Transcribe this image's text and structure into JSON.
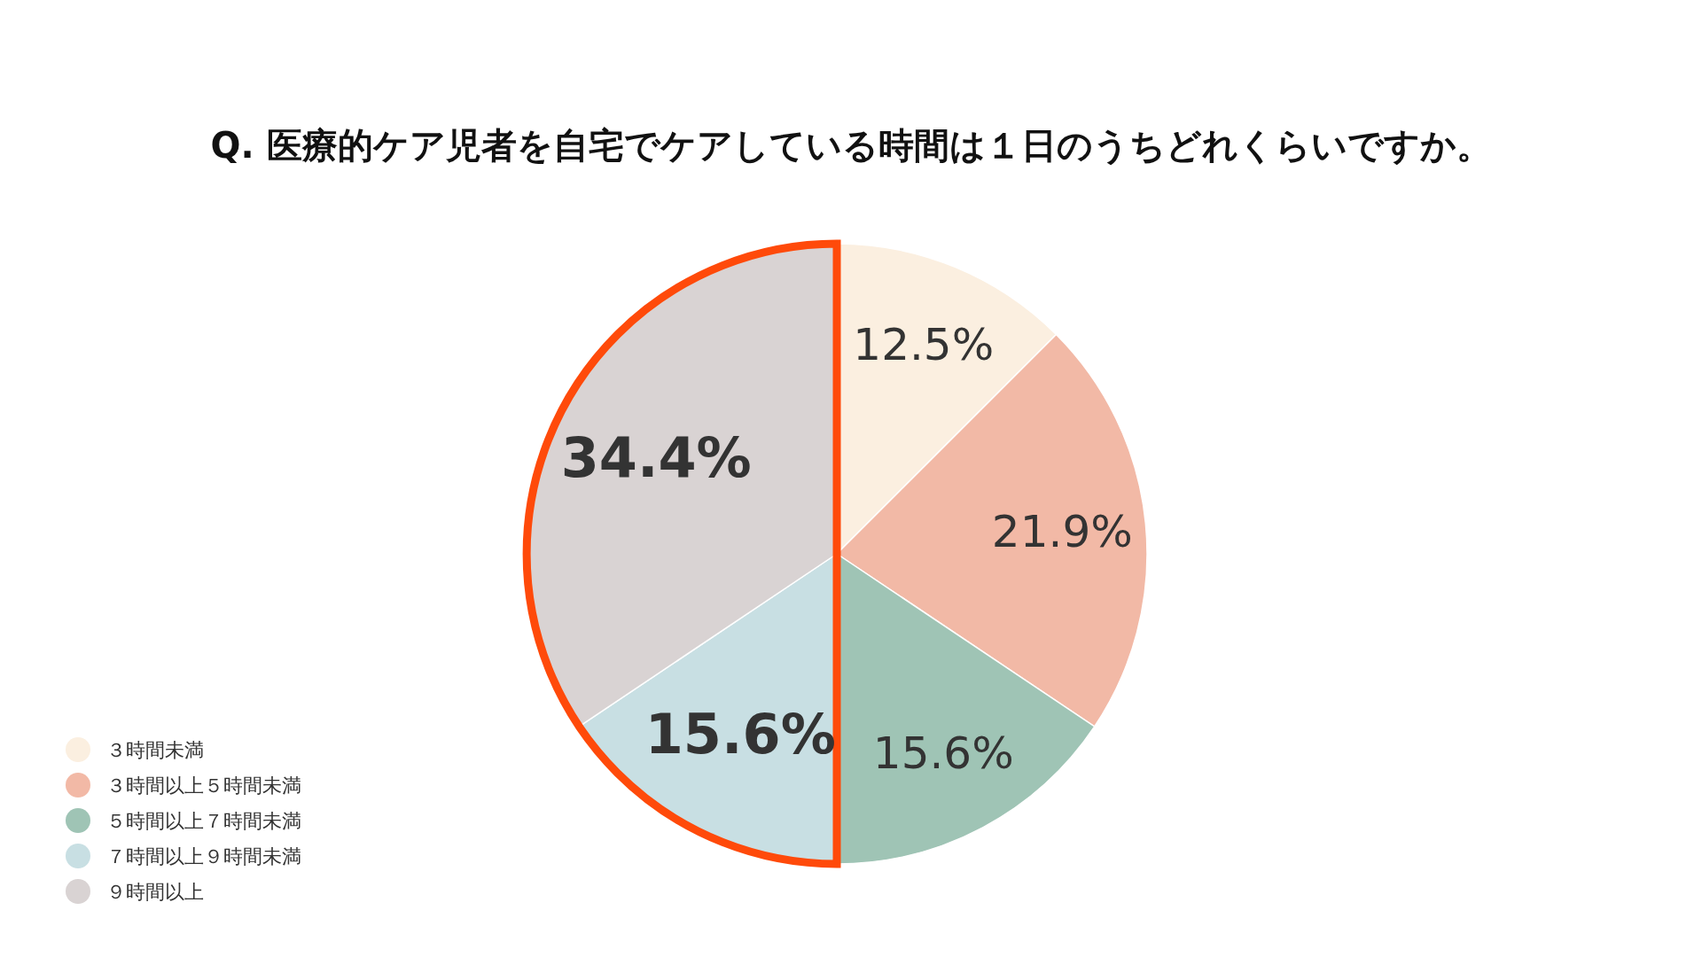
{
  "chart_data": {
    "type": "pie",
    "title": "Q. 医療的ケア児者を自宅でケアしている時間は１日のうちどれくらいですか。",
    "categories": [
      "３時間未満",
      "３時間以上５時間未満",
      "５時間以上７時間未満",
      "７時間以上９時間未満",
      "９時間以上"
    ],
    "values": [
      12.5,
      21.9,
      15.6,
      15.6,
      34.4
    ],
    "colors": [
      "#fbefe0",
      "#f2b9a6",
      "#9fc4b5",
      "#c8dfe3",
      "#d9d3d3"
    ],
    "value_labels": [
      "12.5%",
      "21.9%",
      "15.6%",
      "15.6%",
      "34.4%"
    ],
    "legend": "bottom left"
  }
}
